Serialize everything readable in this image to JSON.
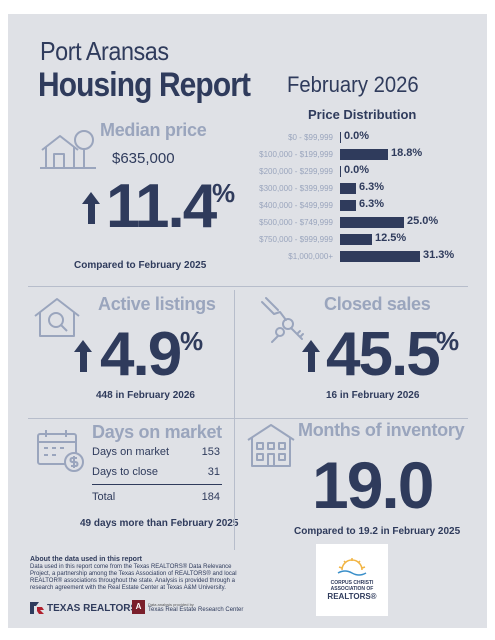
{
  "header": {
    "city": "Port Aransas",
    "title": "Housing Report",
    "period": "February 2026"
  },
  "price_distribution": {
    "title": "Price Distribution",
    "rows": [
      {
        "range": "$0 - $99,999",
        "value": "0.0%",
        "share": 0.0
      },
      {
        "range": "$100,000 - $199,999",
        "value": "18.8%",
        "share": 18.8
      },
      {
        "range": "$200,000 - $299,999",
        "value": "0.0%",
        "share": 0.0
      },
      {
        "range": "$300,000 - $399,999",
        "value": "6.3%",
        "share": 6.3
      },
      {
        "range": "$400,000 - $499,999",
        "value": "6.3%",
        "share": 6.3
      },
      {
        "range": "$500,000 - $749,999",
        "value": "25.0%",
        "share": 25.0
      },
      {
        "range": "$750,000 - $999,999",
        "value": "12.5%",
        "share": 12.5
      },
      {
        "range": "$1,000,000+",
        "value": "31.3%",
        "share": 31.3
      }
    ],
    "color": "#2f3b5c"
  },
  "median_price": {
    "label": "Median price",
    "value": "$635,000",
    "change": "11.4",
    "pct": "%",
    "note": "Compared to February 2025",
    "icon": "house-tree-icon"
  },
  "active_listings": {
    "label": "Active listings",
    "change": "4.9",
    "pct": "%",
    "note": "448 in February 2026",
    "icon": "house-magnifier-icon"
  },
  "closed_sales": {
    "label": "Closed sales",
    "change": "45.5",
    "pct": "%",
    "note": "16 in February 2026",
    "icon": "hand-keys-icon"
  },
  "days_on_market": {
    "label": "Days on market",
    "rows": [
      {
        "label": "Days on market",
        "value": "153"
      },
      {
        "label": "Days to close",
        "value": "31"
      }
    ],
    "total_label": "Total",
    "total_value": "184",
    "note": "49 days more than February 2025",
    "icon": "calendar-dollar-icon"
  },
  "months_inventory": {
    "label": "Months of inventory",
    "value": "19.0",
    "note": "Compared to 19.2 in February 2025",
    "icon": "building-icon"
  },
  "footer": {
    "about_title": "About the data used in this report",
    "about_text": "Data used in this report come from the Texas REALTORS® Data Relevance Project, a partnership among the Texas Association of REALTORS® and local REALTOR® associations throughout the state. Analysis is provided through a research agreement with the Real Estate Center at Texas A&M University.",
    "texas_realtors": "TEXAS REALTORS",
    "research_small": "Data analysis provided by",
    "research_center": "Texas Real Estate Research Center",
    "ccar_line1": "CORPUS CHRISTI",
    "ccar_line2": "ASSOCIATION OF",
    "ccar_line3": "REALTORS®"
  },
  "colors": {
    "navy": "#2f3b5c",
    "muted": "#9aa5bd",
    "background": "#dfe1e6",
    "maroon": "#7a1f2b"
  }
}
